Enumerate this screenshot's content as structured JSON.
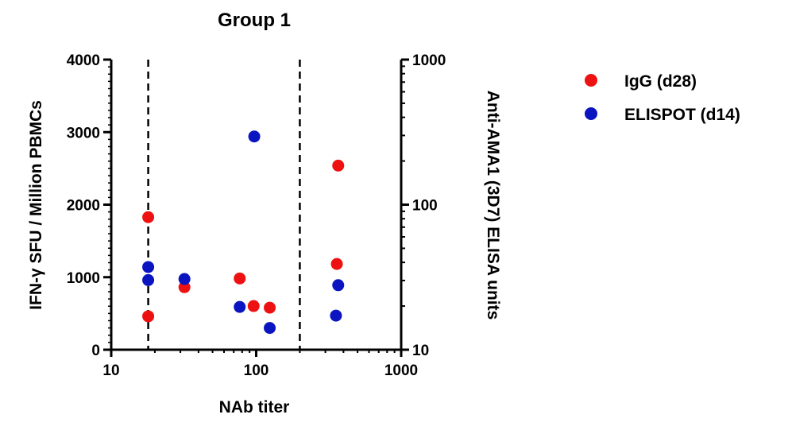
{
  "chart_data": {
    "type": "scatter",
    "title": "Group 1",
    "xlabel": "NAb titer",
    "ylabel_left": "IFN-γ SFU / Million PBMCs",
    "ylabel_right": "Anti-AMA1 (3D7) ELISA units",
    "x_scale": "log",
    "xlim": [
      10,
      1000
    ],
    "x_ticks": [
      10,
      100,
      1000
    ],
    "x_tick_labels": [
      "10",
      "100",
      "1000"
    ],
    "y_left_lim": [
      0,
      4000
    ],
    "y_left_ticks": [
      0,
      1000,
      2000,
      3000,
      4000
    ],
    "y_left_tick_labels": [
      "0",
      "1000",
      "2000",
      "3000",
      "4000"
    ],
    "y_right_scale": "log",
    "y_right_lim": [
      10,
      1000
    ],
    "y_right_ticks": [
      10,
      100,
      1000
    ],
    "y_right_tick_labels": [
      "10",
      "100",
      "1000"
    ],
    "reference_lines_x": [
      18,
      200
    ],
    "grid": false,
    "legend_position": "right",
    "series": [
      {
        "name": "IgG (d28)",
        "color": "#ee1111",
        "axis": "right",
        "x": [
          18,
          18,
          32,
          77,
          96,
          124,
          360,
          368
        ],
        "y": [
          82,
          17,
          27,
          31,
          20,
          19.5,
          39,
          186
        ]
      },
      {
        "name": "ELISPOT (d14)",
        "color": "#0a14c0",
        "axis": "left",
        "x": [
          18,
          18,
          32,
          77,
          97,
          124,
          355,
          368
        ],
        "y": [
          1140,
          960,
          975,
          590,
          2940,
          300,
          470,
          890
        ]
      }
    ]
  }
}
